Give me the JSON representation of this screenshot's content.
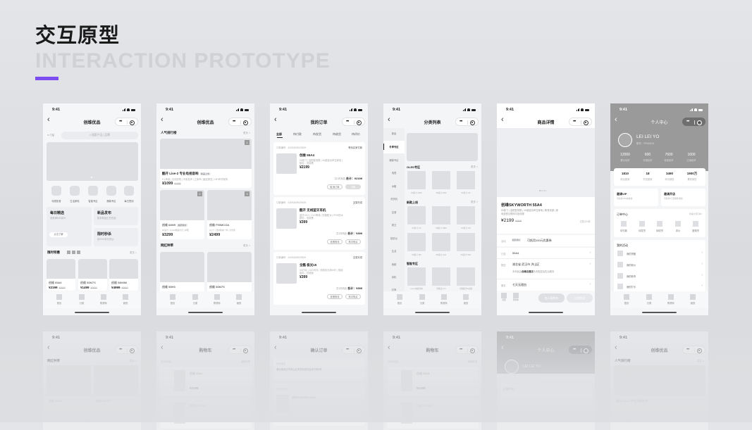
{
  "header": {
    "title": "交互原型",
    "subtitle": "INTERACTION PROTOTYPE",
    "accent": "#7b4cf0"
  },
  "status": {
    "time": "9:41"
  },
  "tabbar": [
    "首页",
    "分类",
    "购物车",
    "我的"
  ],
  "home": {
    "title": "创维优品",
    "location": "门店",
    "search_placeholder": "搜索产品 | 品牌",
    "icons": [
      "电视影音",
      "生活家电",
      "智能专区",
      "爆款专区",
      "每日签到"
    ],
    "daily": {
      "title": "每日精选",
      "sub": "领券满300减20",
      "button": "点击了解"
    },
    "new": {
      "title": "新品发布",
      "sub": "智享新品正在热选"
    },
    "flash": {
      "title": "限时秒杀",
      "sub": "前2000件抄底价"
    },
    "deals_title": "限时特惠",
    "more": "更多 >",
    "deals": [
      {
        "name": "创维 65A4",
        "price": "¥2199",
        "old": "¥2600"
      },
      {
        "name": "创维 50M7S",
        "price": "¥1499",
        "old": "¥2600"
      },
      {
        "name": "创维 58H8M",
        "price": "¥4999",
        "old": "¥2600"
      }
    ]
  },
  "ranking": {
    "title": "创维优品",
    "section": "人气排行榜",
    "more": "更多 >",
    "top": {
      "rank": "1",
      "name": "酷开 Live-2 专业电视音响",
      "tag": "新品上市",
      "spec": "5.1声道 | 无线影院 | 不用发声 | 立体声 | 触控屏显 | HiFi声学架构",
      "price": "¥1099",
      "old": "¥2099"
    },
    "items": [
      {
        "rank": "2",
        "name": "创维 64M9",
        "tag": "超值特价",
        "spec": "64英寸 | OLED像素控光 | 护眼",
        "price": "¥3299"
      },
      {
        "rank": "3",
        "name": "创维 F90MCGA",
        "spec": "9公斤 | 洗烘除螨一体 | 全智能",
        "price": "¥2499"
      }
    ],
    "section2": "网红种草",
    "items2": [
      {
        "name": "创维 55H5"
      },
      {
        "name": "创维 50M7S"
      }
    ]
  },
  "orders": {
    "title": "我的订单",
    "tabs": [
      "全部",
      "待付款",
      "待发货",
      "待收货",
      "待评价"
    ],
    "list": [
      {
        "no": "订单编号：42092409029409",
        "status": "等待买家付款",
        "name": "创维 55A4",
        "spec": "55英寸 | 高配智慧屏 | 4K超高清声控家电 |",
        "spec2": "颜色：低调黑",
        "price": "¥2199",
        "count": "共1件商品",
        "total": "合计：¥2199",
        "btn1": "取消订单",
        "btn2": "付款"
      },
      {
        "no": "订单编号：42092409029409",
        "status": "交易完成",
        "name": "酷开 无线蓝牙耳机",
        "spec": "蓝牙V5.0 | CVC降噪 | 快速配对 | IPX5防水",
        "spec2": "颜色：低调黑",
        "price": "¥399",
        "count": "共1件商品",
        "total": "合计：¥399",
        "btn1": "查看物流",
        "btn2": "再次购买"
      },
      {
        "no": "订单编号：42092409029409",
        "status": "交易完成",
        "name": "全酷 极光15",
        "spec": "3G内存 | 16G闪存 | 双频双天线WiFi | 智能",
        "spec2": "版本：双频版",
        "price": "¥399",
        "count": "共1件商品",
        "total": "合计：¥399",
        "btn1": "查看物流",
        "btn2": "再次购买"
      }
    ]
  },
  "category": {
    "title": "分类列表",
    "sidebar": [
      "新品",
      "冬季专区",
      "爆款专区",
      "电视",
      "冰箱",
      "洗衣机",
      "空调",
      "厨卫",
      "投影仪",
      "生活",
      "音频",
      "耳机",
      "灯饰"
    ],
    "more": "更多 >",
    "sections": [
      {
        "title": "OLED专区",
        "items": [
          "50英寸 H5M",
          "55英寸 H90",
          "55英寸 A5"
        ]
      },
      {
        "title": "新款上线",
        "items": [
          "65英寸 A4",
          "58英寸 H8M",
          "55英寸 A8",
          "50英寸 M5",
          "55英寸 A10",
          "55英寸 55A"
        ]
      },
      {
        "title": "智能专区",
        "items": [
          "Live-2电视音响",
          "创维盒子T2",
          "全酷极光5s双频"
        ]
      }
    ]
  },
  "detail": {
    "title": "商品详情",
    "name": "创维SKYWORTH 55A4",
    "spec": "55英寸 | 高配智慧屏 | 4K超高清声控家电 | 教育资源 | 家",
    "spec2": "电语音互联网平板电视",
    "price": "¥2199",
    "old": "¥2600",
    "sold": "已售224件",
    "promo_label": "活动",
    "promo_tag": "超值特价",
    "promo": "可抵用100元优惠券",
    "selected_label": "已选",
    "selected": "55A4",
    "ship_label": "配送",
    "ship": "湖北省 武汉市 洪山区",
    "ship_note_a": "本商品由",
    "ship_note_b": "创维自营店",
    "ship_note_c": "负责配送及售后服务",
    "service_label": "服务",
    "service": "七天无理由",
    "cs": "客服",
    "cart": "购物车",
    "add_cart": "加入购物车",
    "buy": "立即购买"
  },
  "profile": {
    "title": "个人中心",
    "name": "LEI LEI YO",
    "account": "账号：YP264124",
    "coins": [
      {
        "v": "12000",
        "l": "累计优币"
      },
      {
        "v": "600",
        "l": "可用优币"
      },
      {
        "v": "7600",
        "l": "待收优币"
      },
      {
        "v": "1600",
        "l": "已用优币"
      }
    ],
    "stats": [
      {
        "v": "1810",
        "l": "粉丝数量"
      },
      {
        "v": "18",
        "l": "开店数量"
      },
      {
        "v": "3490",
        "l": "本月销售"
      },
      {
        "v": "1900万",
        "l": "累积销售"
      }
    ],
    "vip": {
      "title": "邀请VIP",
      "sub": "可获得10%的收益"
    },
    "shop": {
      "title": "邀请开店",
      "sub": "可获得7门店销售收益"
    },
    "orders_title": "订单中心",
    "orders_all": "查看全部订单 >",
    "order_items": [
      "待付款",
      "待发货",
      "待收货",
      "评价",
      "退换货"
    ],
    "activity_title": "我的活动",
    "activities": [
      "我的拼团",
      "我的砍价",
      "我的秒杀",
      "我的打卡"
    ]
  },
  "reflections": [
    {
      "title": "创维优品",
      "section": "网红种草",
      "more": "更多 >",
      "a": "创维 55H5",
      "b": "创维 50M7S"
    },
    {
      "title": "购物车",
      "section": "共4件商品",
      "more": "编辑管理",
      "a": "创维 55A4",
      "price": "¥2199",
      "b": "创维 50H5M"
    },
    {
      "title": "确认订单",
      "section": "收货地址",
      "addr": "湖北省武汉市洪山区关东街道光谷步行街8号",
      "store": "创维自营店",
      "a": "创维SKYWORTH 55A4"
    },
    {
      "title": "购物车",
      "section": "共4件商品",
      "more": "编辑管理",
      "a": "创维 55A4",
      "price": "¥2199",
      "b": "创维 50H5M"
    },
    {
      "title": "个人中心",
      "name": "LEI LEI YO",
      "section": "订单中心"
    },
    {
      "title": "创维优品",
      "section": "人气排行榜",
      "more": "更多 >",
      "a": "酷开 Live-2 专业电视音响"
    }
  ]
}
